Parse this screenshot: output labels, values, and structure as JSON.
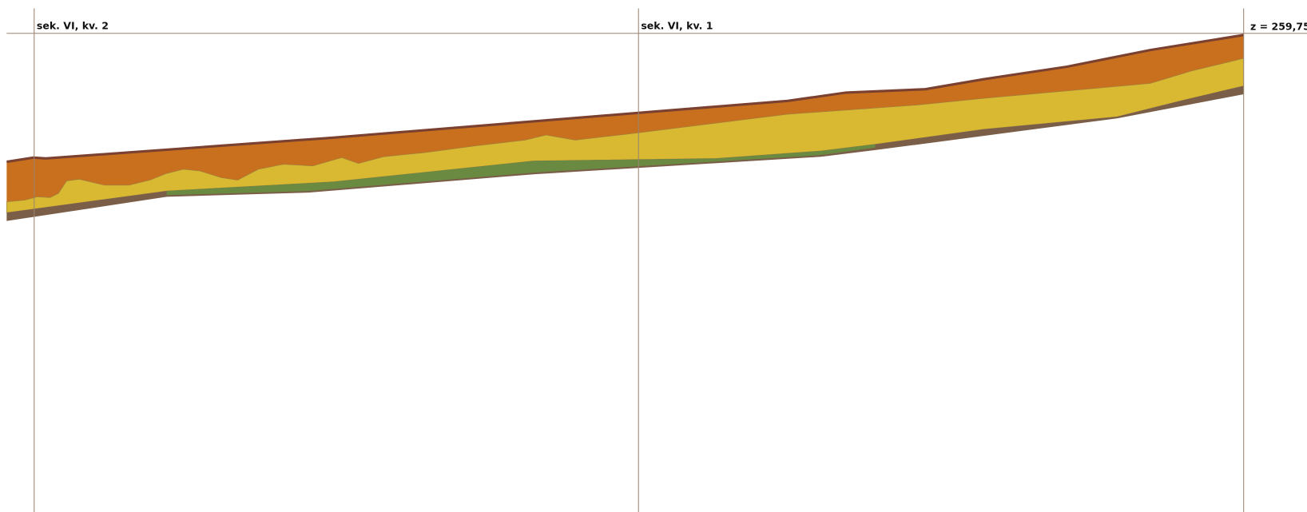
{
  "sections": [
    {
      "label": "sek. VI, kv. 2"
    },
    {
      "label": "sek. VI, kv. 1"
    }
  ],
  "elevation": {
    "label": "z = 259,75"
  }
}
